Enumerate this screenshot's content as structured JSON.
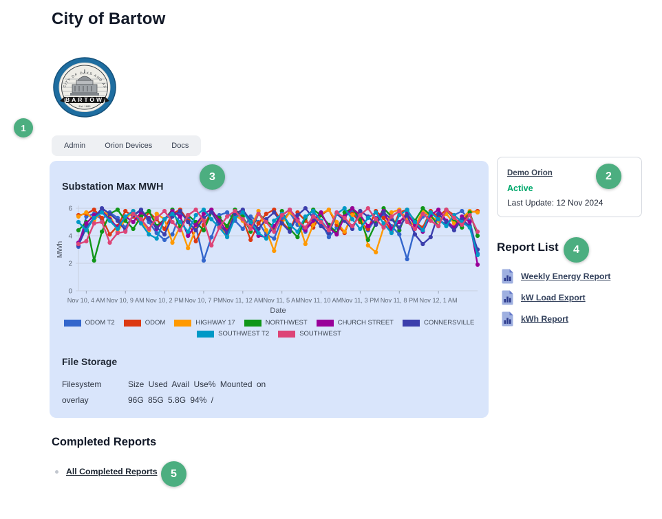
{
  "header": {
    "title": "City of Bartow",
    "tabs": [
      "Admin",
      "Orion Devices",
      "Docs"
    ],
    "logo_banner_text": "BARTOW",
    "logo_arc_text": "CITY OF OAKS AND AZALEAS"
  },
  "annotations": [
    "1",
    "2",
    "3",
    "4",
    "5"
  ],
  "device_card": {
    "name_link": "Demo Orion",
    "status": "Active",
    "last_update": "Last Update: 12 Nov 2024",
    "status_color": "#00a96c"
  },
  "report_list": {
    "heading": "Report List",
    "items": [
      {
        "label": "Weekly Energy Report"
      },
      {
        "label": "kW Load Export"
      },
      {
        "label": "kWh Report"
      }
    ]
  },
  "file_storage": {
    "heading": "File Storage",
    "header_col1": "Filesystem",
    "header_rest": "Size Used Avail Use% Mounted on",
    "row_col1": "overlay",
    "row_rest": "96G 85G 5.8G 94% /"
  },
  "completed_reports": {
    "heading": "Completed Reports",
    "link_label": "All Completed Reports"
  },
  "colors": {
    "panel_bg": "#d9e5fb",
    "badge_green": "#4cae80",
    "gridline": "#c7cedf"
  },
  "chart_data": {
    "type": "line",
    "title": "Substation Max MWH",
    "xlabel": "Date",
    "ylabel": "MWh",
    "ylim": [
      0,
      6
    ],
    "y_ticks": [
      0,
      2,
      4,
      6
    ],
    "grid": true,
    "legend_position": "bottom",
    "x_start": "Nov 10, 3 AM",
    "x_interval_hours": 1,
    "points_per_series": 52,
    "x_tick_indices": [
      1,
      6,
      11,
      16,
      21,
      26,
      31,
      36,
      41,
      46
    ],
    "x_tick_labels": [
      "Nov 10, 4 AM",
      "Nov 10, 9 AM",
      "Nov 10, 2 PM",
      "Nov 10, 7 PM",
      "Nov 11, 12 AM",
      "Nov 11, 5 AM",
      "Nov 11, 10 AM",
      "Nov 11, 3 PM",
      "Nov 11, 8 PM",
      "Nov 12, 1 AM"
    ],
    "series": [
      {
        "name": "ODOM T2",
        "color": "#3366CC",
        "values": [
          3.2,
          5.4,
          5.6,
          5.2,
          5.7,
          5.3,
          4.6,
          5.5,
          5.8,
          5.0,
          4.2,
          3.7,
          4.1,
          5.6,
          5.3,
          4.7,
          2.2,
          3.9,
          5.5,
          5.7,
          5.1,
          4.5,
          5.4,
          5.0,
          4.1,
          3.8,
          5.2,
          5.7,
          4.8,
          4.3,
          5.5,
          5.0,
          3.9,
          4.6,
          5.4,
          5.8,
          5.0,
          4.4,
          5.3,
          5.6,
          4.7,
          4.1,
          2.3,
          4.5,
          5.4,
          5.7,
          5.2,
          4.8,
          5.5,
          5.8,
          5.1,
          2.7
        ]
      },
      {
        "name": "ODOM",
        "color": "#DC3912",
        "values": [
          5.5,
          5.6,
          5.9,
          5.3,
          4.1,
          4.7,
          5.8,
          5.4,
          4.9,
          5.7,
          5.2,
          4.5,
          5.6,
          5.9,
          5.1,
          3.6,
          4.8,
          5.7,
          5.3,
          4.6,
          5.8,
          5.2,
          3.7,
          4.9,
          5.6,
          5.9,
          5.0,
          4.4,
          5.7,
          5.1,
          4.6,
          5.5,
          5.9,
          4.8,
          4.2,
          5.6,
          5.0,
          4.5,
          5.8,
          5.3,
          4.3,
          5.7,
          5.9,
          5.0,
          4.6,
          5.8,
          5.4,
          5.9,
          5.5,
          5.0,
          5.7,
          5.8
        ]
      },
      {
        "name": "HIGHWAY 17",
        "color": "#FF9900",
        "values": [
          5.4,
          5.7,
          5.1,
          5.8,
          5.5,
          4.3,
          5.2,
          5.8,
          5.0,
          4.4,
          5.6,
          5.2,
          3.5,
          4.7,
          3.1,
          4.5,
          5.6,
          5.9,
          4.8,
          4.0,
          5.5,
          5.1,
          4.6,
          5.8,
          4.4,
          2.9,
          4.9,
          5.7,
          5.2,
          3.4,
          4.8,
          5.6,
          5.9,
          5.0,
          4.3,
          5.5,
          5.8,
          3.3,
          2.8,
          4.6,
          5.7,
          5.9,
          5.2,
          4.7,
          5.8,
          5.4,
          5.1,
          5.6,
          4.9,
          5.3,
          5.8,
          5.7
        ]
      },
      {
        "name": "NORTHWEST",
        "color": "#109618",
        "values": [
          4.4,
          5.0,
          2.2,
          4.3,
          5.6,
          5.9,
          5.1,
          4.5,
          5.4,
          5.8,
          4.7,
          5.2,
          5.9,
          4.6,
          5.5,
          5.0,
          4.4,
          5.7,
          5.3,
          4.7,
          5.9,
          5.4,
          4.3,
          5.6,
          5.1,
          4.6,
          5.8,
          4.5,
          3.9,
          5.3,
          5.9,
          5.5,
          4.8,
          4.2,
          5.7,
          6.0,
          5.2,
          3.7,
          4.9,
          6.0,
          5.4,
          4.4,
          5.8,
          5.1,
          6.0,
          5.5,
          4.7,
          5.9,
          5.2,
          4.6,
          5.7,
          4.0
        ]
      },
      {
        "name": "CHURCH STREET",
        "color": "#990099",
        "values": [
          3.5,
          4.9,
          5.5,
          5.8,
          5.2,
          4.6,
          5.4,
          5.0,
          5.7,
          5.3,
          4.5,
          5.2,
          5.8,
          5.4,
          4.0,
          4.8,
          5.6,
          5.9,
          5.1,
          4.3,
          5.3,
          5.8,
          4.9,
          4.0,
          3.9,
          4.7,
          5.5,
          5.9,
          5.2,
          4.4,
          5.1,
          5.7,
          4.6,
          4.1,
          5.4,
          6.0,
          5.5,
          4.7,
          5.2,
          5.8,
          4.5,
          5.0,
          5.6,
          4.8,
          4.3,
          5.5,
          5.9,
          5.1,
          4.6,
          5.4,
          5.0,
          1.9
        ]
      },
      {
        "name": "CONNERSVILLE",
        "color": "#3B3EAC",
        "values": [
          3.3,
          4.6,
          5.3,
          6.0,
          5.6,
          5.1,
          4.4,
          5.5,
          5.9,
          5.2,
          4.6,
          4.1,
          5.4,
          5.8,
          5.0,
          4.4,
          5.3,
          5.7,
          4.8,
          4.2,
          5.6,
          5.9,
          5.1,
          4.5,
          5.2,
          5.7,
          4.9,
          4.3,
          5.5,
          6.0,
          5.3,
          4.7,
          4.2,
          5.6,
          5.1,
          4.5,
          5.8,
          5.4,
          4.8,
          5.7,
          5.2,
          4.6,
          5.5,
          4.1,
          3.4,
          3.9,
          5.6,
          5.0,
          4.4,
          5.2,
          4.7,
          3.0
        ]
      },
      {
        "name": "SOUTHWEST T2",
        "color": "#0099C6",
        "values": [
          5.0,
          4.4,
          5.3,
          5.7,
          5.1,
          4.5,
          5.4,
          5.8,
          4.9,
          4.1,
          3.8,
          5.2,
          5.6,
          5.0,
          4.3,
          5.5,
          5.9,
          5.2,
          4.6,
          3.9,
          5.3,
          5.7,
          5.0,
          4.2,
          3.8,
          5.1,
          5.6,
          4.8,
          4.3,
          5.4,
          5.8,
          5.1,
          4.4,
          5.6,
          6.0,
          5.2,
          4.5,
          5.3,
          5.7,
          4.9,
          4.2,
          5.5,
          5.9,
          5.0,
          4.4,
          5.7,
          5.2,
          4.7,
          5.5,
          5.0,
          4.6,
          2.6
        ]
      },
      {
        "name": "SOUTHWEST",
        "color": "#DD4477",
        "values": [
          3.4,
          3.6,
          4.9,
          5.0,
          3.5,
          4.2,
          4.3,
          5.6,
          5.2,
          4.5,
          5.3,
          5.8,
          5.0,
          4.4,
          5.5,
          5.9,
          5.1,
          3.3,
          4.6,
          5.4,
          5.8,
          5.2,
          4.5,
          5.6,
          5.0,
          4.3,
          5.5,
          5.9,
          5.1,
          4.6,
          5.4,
          5.0,
          4.4,
          5.7,
          5.3,
          4.7,
          5.5,
          6.0,
          5.2,
          4.6,
          5.4,
          5.8,
          5.0,
          4.5,
          5.6,
          5.1,
          4.7,
          5.9,
          5.3,
          4.8,
          5.5,
          4.3
        ]
      }
    ]
  }
}
